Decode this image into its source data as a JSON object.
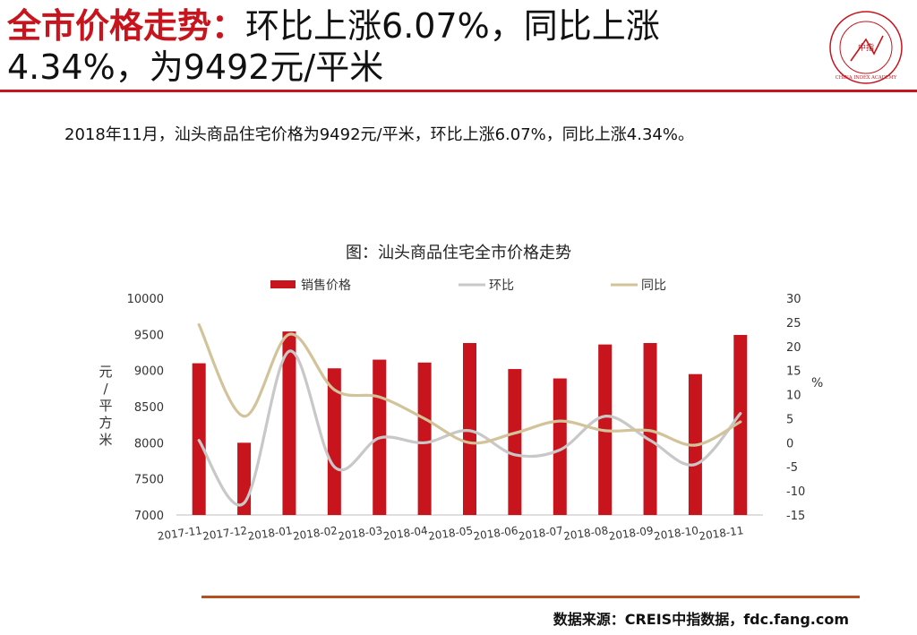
{
  "header": {
    "title_highlight": "全市价格走势：",
    "title_rest": "环比上涨6.07%，同比上涨4.34%，为9492元/平米"
  },
  "summary": "2018年11月，汕头商品住宅价格为9492元/平米，环比上涨6.07%，同比上涨4.34%。",
  "source": "数据来源：CREIS中指数据，fdc.fang.com",
  "logo": {
    "center_text": "中指",
    "ring_text": "CHINA INDEX ACADEMY",
    "colors": {
      "ring": "#c8141d"
    }
  },
  "colors": {
    "accent": "#c8141d",
    "bar": "#c8141d",
    "mom_line": "#c8c8c8",
    "yoy_line": "#d2c39a",
    "bottom_rule": "#b5511e"
  },
  "chart_data": {
    "type": "bar",
    "title": "图：汕头商品住宅全市价格走势",
    "categories": [
      "2017-11",
      "2017-12",
      "2018-01",
      "2018-02",
      "2018-03",
      "2018-04",
      "2018-05",
      "2018-06",
      "2018-07",
      "2018-08",
      "2018-09",
      "2018-10",
      "2018-11"
    ],
    "ylabel": "元/平方米",
    "ylabel_right": "%",
    "ylim": [
      7000,
      10000
    ],
    "y_ticks": [
      7000,
      7500,
      8000,
      8500,
      9000,
      9500,
      10000
    ],
    "ylim_right": [
      -15,
      30
    ],
    "y_ticks_right": [
      -15,
      -10,
      -5,
      0,
      5,
      10,
      15,
      20,
      25,
      30
    ],
    "legend_position": "top",
    "grid": false,
    "series": [
      {
        "name": "销售价格",
        "kind": "bar",
        "axis": "left",
        "values": [
          9100,
          8000,
          9540,
          9030,
          9150,
          9110,
          9380,
          9020,
          8890,
          9360,
          9380,
          8950,
          9492
        ]
      },
      {
        "name": "环比",
        "kind": "line",
        "axis": "right",
        "values": [
          0.5,
          -12.5,
          19.0,
          -5.0,
          1.0,
          0.0,
          2.5,
          -2.5,
          -1.5,
          5.5,
          0.5,
          -4.5,
          6.07
        ]
      },
      {
        "name": "同比",
        "kind": "line",
        "axis": "right",
        "values": [
          24.5,
          5.5,
          22.5,
          11.0,
          9.5,
          5.0,
          0.0,
          2.0,
          4.5,
          2.5,
          2.5,
          -0.5,
          4.34
        ]
      }
    ]
  }
}
